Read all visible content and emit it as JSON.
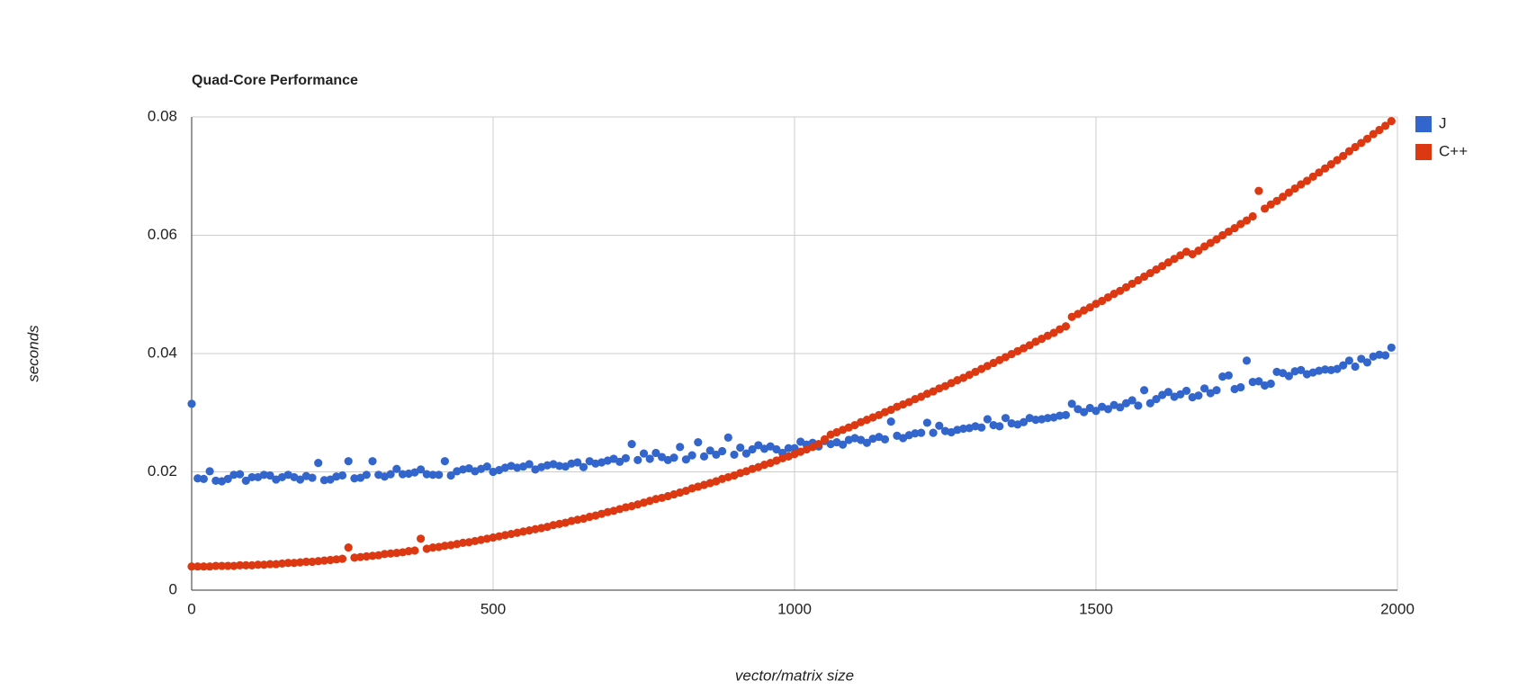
{
  "chart_data": {
    "type": "scatter",
    "title": "Quad-Core Performance",
    "xlabel": "vector/matrix size",
    "ylabel": "seconds",
    "x": [
      0,
      10,
      20,
      30,
      40,
      50,
      60,
      70,
      80,
      90,
      100,
      110,
      120,
      130,
      140,
      150,
      160,
      170,
      180,
      190,
      200,
      210,
      220,
      230,
      240,
      250,
      260,
      270,
      280,
      290,
      300,
      310,
      320,
      330,
      340,
      350,
      360,
      370,
      380,
      390,
      400,
      410,
      420,
      430,
      440,
      450,
      460,
      470,
      480,
      490,
      500,
      510,
      520,
      530,
      540,
      550,
      560,
      570,
      580,
      590,
      600,
      610,
      620,
      630,
      640,
      650,
      660,
      670,
      680,
      690,
      700,
      710,
      720,
      730,
      740,
      750,
      760,
      770,
      780,
      790,
      800,
      810,
      820,
      830,
      840,
      850,
      860,
      870,
      880,
      890,
      900,
      910,
      920,
      930,
      940,
      950,
      960,
      970,
      980,
      990,
      1000,
      1010,
      1020,
      1030,
      1040,
      1050,
      1060,
      1070,
      1080,
      1090,
      1100,
      1110,
      1120,
      1130,
      1140,
      1150,
      1160,
      1170,
      1180,
      1190,
      1200,
      1210,
      1220,
      1230,
      1240,
      1250,
      1260,
      1270,
      1280,
      1290,
      1300,
      1310,
      1320,
      1330,
      1340,
      1350,
      1360,
      1370,
      1380,
      1390,
      1400,
      1410,
      1420,
      1430,
      1440,
      1450,
      1460,
      1470,
      1480,
      1490,
      1500,
      1510,
      1520,
      1530,
      1540,
      1550,
      1560,
      1570,
      1580,
      1590,
      1600,
      1610,
      1620,
      1630,
      1640,
      1650,
      1660,
      1670,
      1680,
      1690,
      1700,
      1710,
      1720,
      1730,
      1740,
      1750,
      1760,
      1770,
      1780,
      1790,
      1800,
      1810,
      1820,
      1830,
      1840,
      1850,
      1860,
      1870,
      1880,
      1890,
      1900,
      1910,
      1920,
      1930,
      1940,
      1950,
      1960,
      1970,
      1980,
      1990
    ],
    "series": [
      {
        "name": "J",
        "color": "#3366cc",
        "values": [
          0.0315,
          0.0189,
          0.0188,
          0.0201,
          0.0185,
          0.0184,
          0.0188,
          0.0195,
          0.0196,
          0.0185,
          0.0191,
          0.0191,
          0.0195,
          0.0194,
          0.0187,
          0.0191,
          0.0195,
          0.0191,
          0.0187,
          0.0193,
          0.019,
          0.0215,
          0.0186,
          0.0187,
          0.0192,
          0.0194,
          0.0218,
          0.0189,
          0.019,
          0.0195,
          0.0218,
          0.0195,
          0.0192,
          0.0196,
          0.0205,
          0.0196,
          0.0197,
          0.0199,
          0.0204,
          0.0196,
          0.0195,
          0.0195,
          0.0218,
          0.0194,
          0.0201,
          0.0204,
          0.0206,
          0.0201,
          0.0205,
          0.0209,
          0.02,
          0.0203,
          0.0207,
          0.021,
          0.0207,
          0.0209,
          0.0213,
          0.0204,
          0.0208,
          0.0211,
          0.0213,
          0.021,
          0.0209,
          0.0214,
          0.0216,
          0.0208,
          0.0218,
          0.0214,
          0.0216,
          0.0219,
          0.0222,
          0.0217,
          0.0223,
          0.0247,
          0.022,
          0.0231,
          0.0222,
          0.0232,
          0.0225,
          0.022,
          0.0224,
          0.0242,
          0.0221,
          0.0228,
          0.025,
          0.0226,
          0.0236,
          0.0229,
          0.0235,
          0.0258,
          0.0229,
          0.0241,
          0.0231,
          0.0238,
          0.0245,
          0.0239,
          0.0243,
          0.0238,
          0.0232,
          0.024,
          0.024,
          0.0251,
          0.0246,
          0.0249,
          0.0243,
          0.0252,
          0.0247,
          0.025,
          0.0246,
          0.0254,
          0.0257,
          0.0254,
          0.0249,
          0.0256,
          0.0259,
          0.0255,
          0.0285,
          0.0261,
          0.0257,
          0.0262,
          0.0265,
          0.0266,
          0.0283,
          0.0266,
          0.0278,
          0.0269,
          0.0267,
          0.0271,
          0.0273,
          0.0274,
          0.0277,
          0.0275,
          0.0289,
          0.0279,
          0.0277,
          0.0291,
          0.0282,
          0.028,
          0.0284,
          0.0291,
          0.0288,
          0.0289,
          0.0291,
          0.0292,
          0.0295,
          0.0296,
          0.0315,
          0.0306,
          0.0301,
          0.0308,
          0.0303,
          0.031,
          0.0306,
          0.0313,
          0.0309,
          0.0316,
          0.0321,
          0.0312,
          0.0338,
          0.0316,
          0.0323,
          0.033,
          0.0335,
          0.0327,
          0.0331,
          0.0337,
          0.0326,
          0.0329,
          0.0341,
          0.0333,
          0.0338,
          0.0361,
          0.0363,
          0.034,
          0.0343,
          0.0388,
          0.0352,
          0.0353,
          0.0346,
          0.0349,
          0.0369,
          0.0367,
          0.0362,
          0.037,
          0.0372,
          0.0365,
          0.0368,
          0.0371,
          0.0373,
          0.0372,
          0.0374,
          0.038,
          0.0388,
          0.0378,
          0.0391,
          0.0385,
          0.0395,
          0.0398,
          0.0397,
          0.041
        ]
      },
      {
        "name": "C++",
        "color": "#dc3912",
        "values": [
          0.004,
          0.004,
          0.004,
          0.004,
          0.0041,
          0.0041,
          0.0041,
          0.0041,
          0.0042,
          0.0042,
          0.0042,
          0.0043,
          0.0043,
          0.0044,
          0.0044,
          0.0045,
          0.0046,
          0.0046,
          0.0047,
          0.0048,
          0.0048,
          0.0049,
          0.005,
          0.0051,
          0.0052,
          0.0053,
          0.0072,
          0.0055,
          0.0056,
          0.0057,
          0.0058,
          0.0059,
          0.0061,
          0.0062,
          0.0063,
          0.0064,
          0.0066,
          0.0067,
          0.0087,
          0.007,
          0.0072,
          0.0073,
          0.0075,
          0.0076,
          0.0078,
          0.008,
          0.0081,
          0.0083,
          0.0085,
          0.0087,
          0.0089,
          0.0091,
          0.0093,
          0.0095,
          0.0097,
          0.0099,
          0.0101,
          0.0103,
          0.0105,
          0.0107,
          0.011,
          0.0112,
          0.0114,
          0.0117,
          0.0119,
          0.0121,
          0.0124,
          0.0126,
          0.0129,
          0.0132,
          0.0134,
          0.0137,
          0.014,
          0.0142,
          0.0145,
          0.0148,
          0.0151,
          0.0154,
          0.0156,
          0.0159,
          0.0162,
          0.0165,
          0.0168,
          0.0172,
          0.0175,
          0.0178,
          0.0181,
          0.0184,
          0.0188,
          0.0191,
          0.0194,
          0.0198,
          0.0201,
          0.0205,
          0.0208,
          0.0212,
          0.0215,
          0.0219,
          0.0223,
          0.0226,
          0.023,
          0.0234,
          0.0238,
          0.0242,
          0.0247,
          0.0255,
          0.0263,
          0.0267,
          0.0271,
          0.0275,
          0.0279,
          0.0284,
          0.0288,
          0.0292,
          0.0296,
          0.0301,
          0.0305,
          0.031,
          0.0314,
          0.0318,
          0.0323,
          0.0327,
          0.0332,
          0.0336,
          0.0341,
          0.0345,
          0.035,
          0.0355,
          0.0359,
          0.0364,
          0.0369,
          0.0374,
          0.0379,
          0.0384,
          0.0389,
          0.0394,
          0.0399,
          0.0404,
          0.0409,
          0.0414,
          0.042,
          0.0425,
          0.043,
          0.0435,
          0.0441,
          0.0446,
          0.0462,
          0.0467,
          0.0473,
          0.0478,
          0.0484,
          0.0489,
          0.0495,
          0.0501,
          0.0506,
          0.0512,
          0.0518,
          0.0524,
          0.053,
          0.0536,
          0.0542,
          0.0548,
          0.0554,
          0.056,
          0.0566,
          0.0572,
          0.0568,
          0.0574,
          0.0581,
          0.0587,
          0.0593,
          0.06,
          0.0606,
          0.0612,
          0.0619,
          0.0625,
          0.0632,
          0.0675,
          0.0645,
          0.0652,
          0.0658,
          0.0665,
          0.0672,
          0.0679,
          0.0686,
          0.0692,
          0.0699,
          0.0706,
          0.0713,
          0.072,
          0.0727,
          0.0734,
          0.0742,
          0.0749,
          0.0756,
          0.0763,
          0.0771,
          0.0778,
          0.0785,
          0.0793
        ]
      }
    ],
    "xlim": [
      0,
      2000
    ],
    "xticks": [
      0,
      500,
      1000,
      1500,
      2000
    ],
    "ylim": [
      0,
      0.08
    ],
    "yticks": [
      0,
      0.02,
      0.04,
      0.06,
      0.08
    ],
    "grid": true,
    "legend": "right"
  }
}
